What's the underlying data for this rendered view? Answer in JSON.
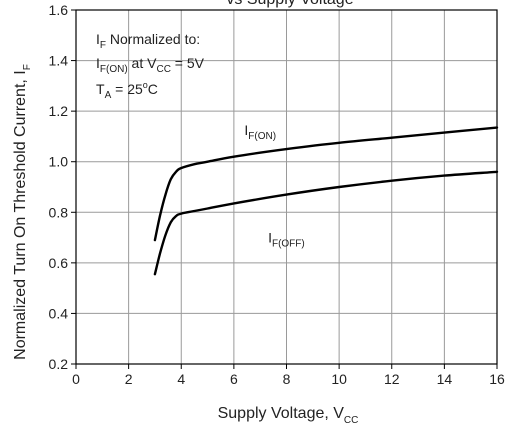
{
  "chart_data": {
    "type": "line",
    "title": "vs Supply Voltage",
    "xlabel": {
      "main": "Supply Voltage, V",
      "sub": "CC"
    },
    "ylabel": {
      "main": "Normalized Turn On Threshold Current, I",
      "sub": "F"
    },
    "xlim": [
      0,
      16
    ],
    "ylim": [
      0.2,
      1.6
    ],
    "x_ticks": [
      0,
      2,
      4,
      6,
      8,
      10,
      12,
      14,
      16
    ],
    "x_tick_labels": [
      "0",
      "2",
      "4",
      "6",
      "8",
      "10",
      "12",
      "14",
      "16"
    ],
    "y_ticks": [
      0.2,
      0.4,
      0.6,
      0.8,
      1.0,
      1.2,
      1.4,
      1.6
    ],
    "y_tick_labels": [
      "0.2",
      "0.4",
      "0.6",
      "0.8",
      "1.0",
      "1.2",
      "1.4",
      "1.6"
    ],
    "grid": true,
    "annotation": {
      "line1": {
        "a": "I",
        "a_sub": "F",
        "b": " Normalized to:"
      },
      "line2": {
        "a": "I",
        "a_sub": "F(ON)",
        "b": " at V",
        "b_sub": "CC",
        "c": " = 5V"
      },
      "line3": {
        "a": "T",
        "a_sub": "A",
        "b": " = 25",
        "b_sup": "o",
        "c": "C"
      }
    },
    "series": [
      {
        "name": "I_F(ON)",
        "label": {
          "main": "I",
          "sub": "F(ON)"
        },
        "label_at": {
          "x": 6.4,
          "y": 1.105
        },
        "x": [
          3.0,
          3.2,
          3.4,
          3.6,
          3.8,
          4.0,
          4.5,
          5.0,
          6.0,
          8.0,
          10.0,
          12.0,
          14.0,
          16.0
        ],
        "y": [
          0.69,
          0.79,
          0.87,
          0.93,
          0.96,
          0.975,
          0.99,
          1.0,
          1.02,
          1.05,
          1.075,
          1.095,
          1.115,
          1.135
        ]
      },
      {
        "name": "I_F(OFF)",
        "label": {
          "main": "I",
          "sub": "F(OFF)"
        },
        "label_at": {
          "x": 7.3,
          "y": 0.68
        },
        "x": [
          3.0,
          3.2,
          3.4,
          3.6,
          3.8,
          4.0,
          4.5,
          5.0,
          6.0,
          8.0,
          10.0,
          12.0,
          14.0,
          16.0
        ],
        "y": [
          0.555,
          0.64,
          0.71,
          0.76,
          0.785,
          0.795,
          0.805,
          0.815,
          0.835,
          0.87,
          0.9,
          0.925,
          0.945,
          0.96
        ]
      }
    ]
  }
}
